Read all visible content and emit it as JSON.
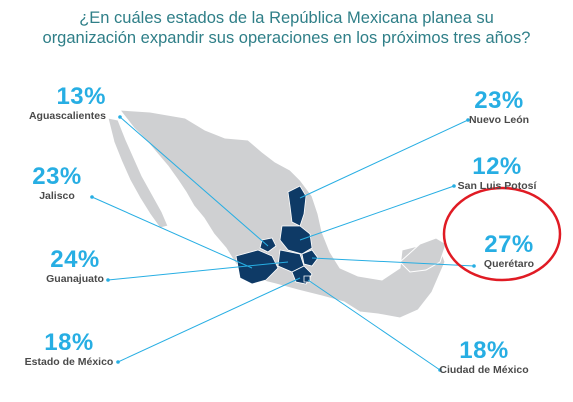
{
  "title": {
    "line1": "¿En cuáles estados de la República Mexicana planea su",
    "line2": "organización expandir sus operaciones en los próximos tres años?"
  },
  "colors": {
    "title": "#2f7f88",
    "percent": "#27aee3",
    "label": "#4a4a4a",
    "map_land": "#cfd0d2",
    "highlight_state": "#0e3a66",
    "connector": "#27aee3",
    "annotation_circle": "#e01b24"
  },
  "states": [
    {
      "id": "aguascalientes",
      "percent": "13%",
      "name": "Aguascalientes"
    },
    {
      "id": "jalisco",
      "percent": "23%",
      "name": "Jalisco"
    },
    {
      "id": "guanajuato",
      "percent": "24%",
      "name": "Guanajuato"
    },
    {
      "id": "estado_mexico",
      "percent": "18%",
      "name": "Estado de México"
    },
    {
      "id": "nuevo_leon",
      "percent": "23%",
      "name": "Nuevo León"
    },
    {
      "id": "san_luis_potosi",
      "percent": "12%",
      "name": "San Luis Potosí"
    },
    {
      "id": "queretaro",
      "percent": "27%",
      "name": "Querétaro"
    },
    {
      "id": "cdmx",
      "percent": "18%",
      "name": "Ciudad de México"
    }
  ]
}
